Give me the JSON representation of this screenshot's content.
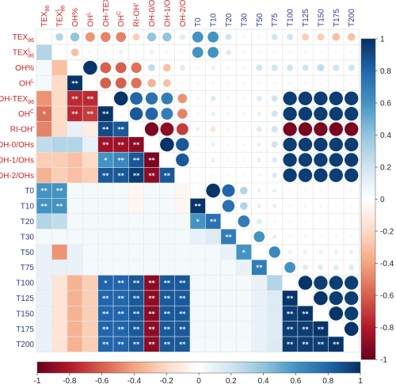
{
  "chart_data": {
    "type": "heatmap",
    "title": "",
    "variables": [
      "TEX86",
      "TEX86L",
      "OH%",
      "OH-L",
      "OH-TEX86",
      "OH-C",
      "RI-OH'",
      "OH-0/OHs",
      "OH-1/OHs",
      "OH-2/OHs",
      "T0",
      "T10",
      "T20",
      "T30",
      "T50",
      "T75",
      "T100",
      "T125",
      "T150",
      "T175",
      "T200"
    ],
    "labels": {
      "TEX86": {
        "main": "TEX",
        "sub": "86",
        "sup": ""
      },
      "TEX86L": {
        "main": "TEX",
        "sub": "86",
        "sup": "L"
      },
      "OH%": {
        "main": "OH%",
        "sub": "",
        "sup": ""
      },
      "OH-L": {
        "main": "OH",
        "sub": "",
        "sup": "L"
      },
      "OH-TEX86": {
        "main": "OH-TEX",
        "sub": "86",
        "sup": ""
      },
      "OH-C": {
        "main": "OH",
        "sub": "",
        "sup": "C"
      },
      "RI-OH'": {
        "main": "RI-OH'",
        "sub": "",
        "sup": ""
      },
      "OH-0/OHs": {
        "main": "OH-0/OHs",
        "sub": "",
        "sup": ""
      },
      "OH-1/OHs": {
        "main": "OH-1/OHs",
        "sub": "",
        "sup": ""
      },
      "OH-2/OHs": {
        "main": "OH-2/OHs",
        "sub": "",
        "sup": ""
      },
      "T0": {
        "main": "T0",
        "sub": "",
        "sup": ""
      },
      "T10": {
        "main": "T10",
        "sub": "",
        "sup": ""
      },
      "T20": {
        "main": "T20",
        "sub": "",
        "sup": ""
      },
      "T30": {
        "main": "T30",
        "sub": "",
        "sup": ""
      },
      "T50": {
        "main": "T50",
        "sub": "",
        "sup": ""
      },
      "T75": {
        "main": "T75",
        "sub": "",
        "sup": ""
      },
      "T100": {
        "main": "T100",
        "sub": "",
        "sup": ""
      },
      "T125": {
        "main": "T125",
        "sub": "",
        "sup": ""
      },
      "T150": {
        "main": "T150",
        "sub": "",
        "sup": ""
      },
      "T175": {
        "main": "T175",
        "sub": "",
        "sup": ""
      },
      "T200": {
        "main": "T200",
        "sub": "",
        "sup": ""
      }
    },
    "label_colors": {
      "proxy": "#cc2222",
      "temperature": "#2d3a8c"
    },
    "proxy_count": 10,
    "upper_triangle": "circle",
    "lower_triangle": "square",
    "significance_marks": "* p<0.05, ** p<0.01 (asterisks drawn in lower triangle)",
    "matrix": [
      [
        1.0,
        0.3,
        0.4,
        -0.45,
        -0.5,
        -0.5,
        -0.25,
        0.4,
        0.4,
        0.15,
        0.6,
        0.6,
        0.2,
        -0.05,
        -0.05,
        0.2,
        0.2,
        -0.25,
        -0.25,
        -0.3,
        -0.3
      ],
      [
        0.3,
        1.0,
        -0.3,
        -0.05,
        0.05,
        0.1,
        0.05,
        0.1,
        0.05,
        -0.05,
        0.6,
        0.6,
        0.15,
        0.05,
        -0.05,
        -0.05,
        0.05,
        0.05,
        0.05,
        0.05,
        0.05
      ],
      [
        0.4,
        -0.3,
        1.0,
        0.98,
        -0.6,
        -0.6,
        -0.55,
        0.25,
        -0.3,
        0.15,
        0.05,
        0.1,
        0.05,
        0.05,
        0.2,
        0.2,
        0.2,
        0.2,
        0.25,
        0.2,
        0.2
      ],
      [
        -0.45,
        -0.05,
        0.98,
        1.0,
        -0.6,
        -0.6,
        -0.55,
        -0.35,
        -0.3,
        0.05,
        -0.05,
        0.05,
        0.05,
        -0.05,
        -0.05,
        -0.05,
        -0.05,
        -0.05,
        -0.05,
        -0.05,
        -0.05
      ],
      [
        -0.5,
        0.05,
        -0.6,
        -0.6,
        1.0,
        0.98,
        0.8,
        0.75,
        0.7,
        -0.45,
        0.05,
        0.15,
        0.05,
        0.05,
        0.15,
        0.2,
        0.95,
        0.95,
        0.95,
        0.95,
        0.95
      ],
      [
        -0.5,
        0.1,
        -0.6,
        -0.6,
        0.98,
        1.0,
        0.85,
        0.8,
        0.7,
        -0.5,
        0.05,
        0.1,
        0.05,
        0.05,
        0.1,
        0.2,
        0.95,
        0.95,
        0.95,
        0.95,
        0.95
      ],
      [
        -0.25,
        0.05,
        -0.55,
        -0.55,
        0.8,
        0.85,
        1.0,
        -0.95,
        -0.9,
        -0.7,
        -0.1,
        -0.15,
        0.05,
        0.05,
        0.15,
        0.2,
        -0.95,
        -0.95,
        -0.95,
        -0.95,
        -0.95
      ],
      [
        0.4,
        0.1,
        0.25,
        -0.35,
        0.75,
        0.8,
        -0.95,
        1.0,
        0.98,
        0.85,
        0.05,
        0.1,
        0.05,
        0.05,
        0.1,
        0.2,
        0.95,
        0.95,
        0.95,
        0.95,
        0.95
      ],
      [
        0.4,
        0.05,
        -0.3,
        -0.3,
        0.7,
        0.7,
        -0.9,
        0.98,
        1.0,
        0.85,
        0.05,
        0.1,
        0.05,
        0.05,
        0.1,
        0.15,
        0.95,
        0.95,
        0.95,
        0.95,
        0.95
      ],
      [
        0.15,
        -0.05,
        0.15,
        0.05,
        -0.45,
        -0.5,
        -0.7,
        0.85,
        0.85,
        1.0,
        -0.05,
        -0.05,
        0.05,
        0.05,
        0.05,
        0.15,
        0.95,
        0.95,
        0.95,
        0.95,
        0.95
      ],
      [
        0.6,
        0.6,
        0.05,
        -0.05,
        0.05,
        0.05,
        -0.1,
        0.05,
        0.05,
        -0.05,
        1.0,
        0.98,
        0.8,
        0.3,
        0.1,
        0.1,
        0.05,
        0.05,
        0.05,
        0.05,
        0.05
      ],
      [
        0.6,
        0.6,
        0.1,
        0.05,
        0.15,
        0.1,
        -0.15,
        0.1,
        0.1,
        -0.05,
        0.98,
        1.0,
        0.75,
        0.3,
        0.1,
        0.1,
        0.05,
        0.05,
        0.05,
        0.05,
        0.05
      ],
      [
        0.2,
        0.15,
        0.05,
        0.05,
        0.05,
        0.05,
        0.05,
        0.05,
        0.05,
        0.05,
        0.8,
        0.75,
        1.0,
        0.7,
        0.15,
        0.05,
        0.05,
        0.05,
        0.05,
        0.05,
        0.05
      ],
      [
        -0.05,
        0.05,
        0.05,
        -0.05,
        0.05,
        0.05,
        0.05,
        0.05,
        0.05,
        0.05,
        0.3,
        0.3,
        0.7,
        1.0,
        0.6,
        0.1,
        0.05,
        0.05,
        0.05,
        0.05,
        0.05
      ],
      [
        -0.05,
        -0.05,
        0.2,
        -0.05,
        0.15,
        0.1,
        0.15,
        0.1,
        0.1,
        0.05,
        0.1,
        0.1,
        0.15,
        0.6,
        1.0,
        0.65,
        0.1,
        0.1,
        0.1,
        0.1,
        0.1
      ],
      [
        0.2,
        -0.05,
        0.2,
        -0.05,
        0.2,
        0.2,
        0.2,
        0.2,
        0.15,
        0.15,
        0.1,
        0.1,
        0.05,
        0.1,
        0.65,
        1.0,
        0.6,
        0.15,
        0.15,
        0.15,
        0.15
      ],
      [
        0.2,
        0.05,
        0.2,
        -0.05,
        0.95,
        0.95,
        -0.95,
        0.95,
        0.95,
        0.95,
        0.05,
        0.05,
        0.05,
        0.05,
        0.1,
        0.6,
        1.0,
        0.98,
        0.95,
        0.95,
        0.95
      ],
      [
        -0.25,
        0.05,
        0.2,
        -0.05,
        0.95,
        0.95,
        -0.95,
        0.95,
        0.95,
        0.95,
        0.05,
        0.05,
        0.05,
        0.05,
        0.1,
        0.15,
        0.98,
        1.0,
        0.98,
        0.95,
        0.95
      ],
      [
        -0.25,
        0.05,
        0.25,
        -0.05,
        0.95,
        0.95,
        -0.95,
        0.95,
        0.95,
        0.95,
        0.05,
        0.05,
        0.05,
        0.05,
        0.1,
        0.15,
        0.95,
        0.98,
        1.0,
        0.98,
        0.95
      ],
      [
        -0.3,
        0.05,
        0.2,
        -0.05,
        0.95,
        0.95,
        -0.95,
        0.95,
        0.95,
        0.95,
        0.05,
        0.05,
        0.05,
        0.05,
        0.1,
        0.15,
        0.95,
        0.95,
        0.98,
        1.0,
        0.98
      ],
      [
        -0.3,
        0.05,
        0.2,
        -0.05,
        0.95,
        0.95,
        -0.95,
        0.95,
        0.95,
        0.95,
        0.05,
        0.05,
        0.05,
        0.05,
        0.1,
        0.15,
        0.95,
        0.95,
        0.95,
        0.98,
        1.0
      ]
    ],
    "lower_display": [
      [
        null,
        null,
        null,
        null,
        null,
        null,
        null,
        null,
        null,
        null,
        null,
        null,
        null,
        null,
        null,
        null,
        null,
        null,
        null,
        null,
        null
      ],
      [
        0.3,
        null,
        null,
        null,
        null,
        null,
        null,
        null,
        null,
        null,
        null,
        null,
        null,
        null,
        null,
        null,
        null,
        null,
        null,
        null,
        null
      ],
      [
        0.05,
        -0.3,
        null,
        null,
        null,
        null,
        null,
        null,
        null,
        null,
        null,
        null,
        null,
        null,
        null,
        null,
        null,
        null,
        null,
        null,
        null
      ],
      [
        0.05,
        -0.2,
        0.98,
        null,
        null,
        null,
        null,
        null,
        null,
        null,
        null,
        null,
        null,
        null,
        null,
        null,
        null,
        null,
        null,
        null,
        null
      ],
      [
        -0.45,
        -0.2,
        -0.75,
        -0.75,
        null,
        null,
        null,
        null,
        null,
        null,
        null,
        null,
        null,
        null,
        null,
        null,
        null,
        null,
        null,
        null,
        null
      ],
      [
        -0.55,
        -0.2,
        -0.75,
        -0.7,
        0.98,
        null,
        null,
        null,
        null,
        null,
        null,
        null,
        null,
        null,
        null,
        null,
        null,
        null,
        null,
        null,
        null
      ],
      [
        -0.5,
        -0.2,
        0.1,
        -0.1,
        0.9,
        0.85,
        null,
        null,
        null,
        null,
        null,
        null,
        null,
        null,
        null,
        null,
        null,
        null,
        null,
        null,
        null
      ],
      [
        0.25,
        0.3,
        0.3,
        0.1,
        -0.85,
        -0.85,
        -0.9,
        null,
        null,
        null,
        null,
        null,
        null,
        null,
        null,
        null,
        null,
        null,
        null,
        null,
        null
      ],
      [
        -0.25,
        -0.25,
        -0.3,
        -0.2,
        0.6,
        0.65,
        0.85,
        -0.95,
        null,
        null,
        null,
        null,
        null,
        null,
        null,
        null,
        null,
        null,
        null,
        null,
        null
      ],
      [
        -0.35,
        -0.25,
        -0.3,
        -0.25,
        0.85,
        0.85,
        0.95,
        -0.9,
        0.85,
        null,
        null,
        null,
        null,
        null,
        null,
        null,
        null,
        null,
        null,
        null,
        null
      ],
      [
        0.6,
        0.6,
        0.05,
        0.05,
        0.05,
        0.05,
        -0.05,
        0.05,
        0.05,
        -0.05,
        null,
        null,
        null,
        null,
        null,
        null,
        null,
        null,
        null,
        null,
        null
      ],
      [
        0.6,
        0.6,
        0.05,
        0.05,
        0.05,
        0.05,
        -0.05,
        0.05,
        0.05,
        -0.05,
        0.98,
        null,
        null,
        null,
        null,
        null,
        null,
        null,
        null,
        null,
        null
      ],
      [
        0.3,
        0.25,
        0.05,
        0.05,
        0.05,
        0.05,
        0.05,
        0.05,
        0.05,
        0.05,
        0.6,
        0.75,
        null,
        null,
        null,
        null,
        null,
        null,
        null,
        null,
        null
      ],
      [
        0.05,
        0.05,
        0.05,
        0.05,
        0.05,
        0.05,
        0.05,
        0.05,
        0.05,
        0.05,
        0.1,
        0.15,
        0.7,
        null,
        null,
        null,
        null,
        null,
        null,
        null,
        null
      ],
      [
        0.1,
        -0.45,
        0.1,
        0.05,
        0.05,
        0.05,
        0.05,
        0.05,
        0.05,
        0.05,
        0.05,
        0.05,
        0.1,
        0.6,
        null,
        null,
        null,
        null,
        null,
        null,
        null
      ],
      [
        0.1,
        0.1,
        0.1,
        0.05,
        0.05,
        0.05,
        0.05,
        0.05,
        0.05,
        0.05,
        0.05,
        0.05,
        0.05,
        0.1,
        0.7,
        null,
        null,
        null,
        null,
        null,
        null
      ],
      [
        0.1,
        -0.15,
        -0.35,
        -0.25,
        0.8,
        0.8,
        0.85,
        -0.9,
        0.85,
        0.85,
        0.05,
        0.05,
        0.05,
        0.05,
        0.1,
        0.3,
        null,
        null,
        null,
        null,
        null
      ],
      [
        0.1,
        -0.15,
        -0.35,
        -0.25,
        0.8,
        0.8,
        0.85,
        -0.9,
        0.85,
        0.85,
        0.05,
        0.05,
        0.05,
        0.05,
        0.1,
        0.15,
        0.98,
        null,
        null,
        null,
        null
      ],
      [
        0.1,
        -0.15,
        -0.35,
        -0.25,
        0.8,
        0.8,
        0.85,
        -0.9,
        0.85,
        0.85,
        0.05,
        0.05,
        0.05,
        0.05,
        0.1,
        0.15,
        0.95,
        0.98,
        null,
        null,
        null
      ],
      [
        0.1,
        -0.15,
        -0.35,
        -0.25,
        0.8,
        0.8,
        0.85,
        -0.9,
        0.85,
        0.85,
        0.05,
        0.05,
        0.05,
        0.05,
        0.1,
        0.15,
        0.95,
        0.95,
        0.98,
        null,
        null
      ],
      [
        0.1,
        -0.15,
        -0.35,
        -0.25,
        0.8,
        0.8,
        0.85,
        -0.9,
        0.85,
        0.85,
        0.05,
        0.05,
        0.05,
        0.05,
        0.1,
        0.15,
        0.95,
        0.95,
        0.95,
        0.98,
        null
      ]
    ],
    "lower_stars": [
      [],
      [],
      [],
      [],
      [],
      [],
      [],
      [],
      [],
      [],
      [],
      [],
      [],
      [],
      [],
      [],
      [],
      [],
      [],
      [],
      []
    ],
    "stars": {
      "3,2": "**",
      "4,2": "**",
      "4,3": "**",
      "5,0": "*",
      "5,2": "**",
      "5,3": "**",
      "5,4": "**",
      "6,4": "**",
      "6,5": "**",
      "7,4": "**",
      "7,5": "**",
      "7,6": "**",
      "8,4": "*",
      "8,5": "**",
      "8,6": "**",
      "8,7": "**",
      "9,4": "**",
      "9,5": "**",
      "9,6": "**",
      "9,7": "**",
      "9,8": "**",
      "10,0": "**",
      "10,1": "**",
      "11,0": "**",
      "11,1": "**",
      "11,10": "**",
      "12,10": "*",
      "12,11": "**",
      "13,12": "**",
      "14,13": "*",
      "15,14": "**",
      "16,4": "*",
      "16,5": "**",
      "16,6": "**",
      "16,7": "**",
      "16,8": "**",
      "16,9": "**",
      "17,4": "**",
      "17,5": "**",
      "17,6": "**",
      "17,7": "**",
      "17,8": "**",
      "17,9": "**",
      "17,16": "**",
      "18,4": "**",
      "18,5": "**",
      "18,6": "**",
      "18,7": "**",
      "18,8": "**",
      "18,9": "**",
      "18,16": "**",
      "18,17": "**",
      "19,4": "**",
      "19,5": "**",
      "19,6": "**",
      "19,7": "**",
      "19,8": "**",
      "19,9": "**",
      "19,16": "**",
      "19,17": "**",
      "19,18": "**",
      "20,4": "**",
      "20,5": "**",
      "20,6": "**",
      "20,7": "**",
      "20,8": "**",
      "20,9": "**",
      "20,16": "**",
      "20,17": "**",
      "20,18": "**",
      "20,19": "**"
    },
    "colorbar_right": {
      "ticks": [
        1,
        0.8,
        0.6,
        0.4,
        0.2,
        0,
        -0.2,
        -0.4,
        -0.6,
        -0.8,
        -1
      ],
      "labels": [
        "1",
        "0.8",
        "0.6",
        "0.4",
        "0.2",
        "0",
        "-0.2",
        "-0.4",
        "-0.6",
        "-0.8",
        "-1"
      ]
    },
    "colorbar_bottom": {
      "ticks": [
        -1,
        -0.8,
        -0.6,
        -0.4,
        -0.2,
        0,
        0.2,
        0.4,
        0.6,
        0.8,
        1
      ],
      "labels": [
        "-1",
        "-0.8",
        "-0.6",
        "-0.4",
        "-0.2",
        "0",
        "0.2",
        "0.4",
        "0.6",
        "0.8",
        "1"
      ]
    },
    "colors": {
      "negative": "#67001f",
      "neutral": "#ffffff",
      "positive": "#053061"
    },
    "legend_placement": "right and bottom colorbars"
  }
}
